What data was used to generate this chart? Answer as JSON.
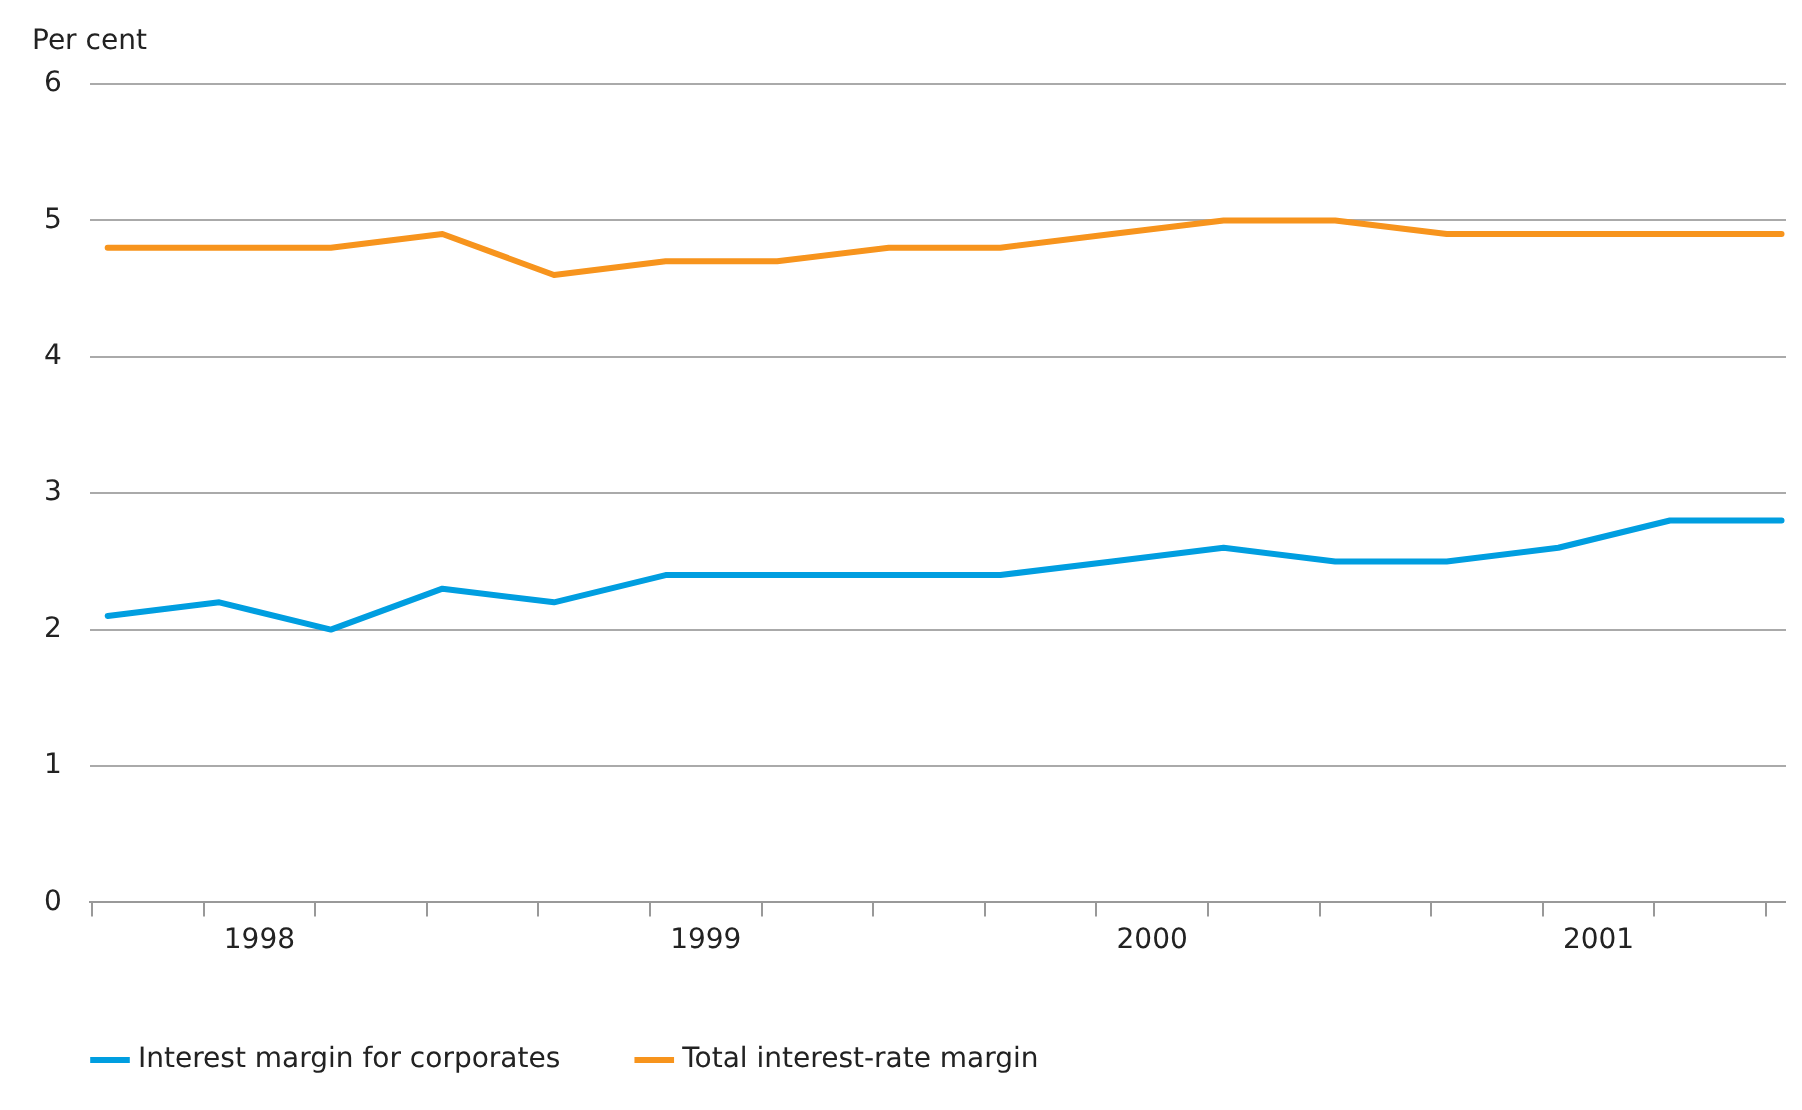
{
  "chart_data": {
    "type": "line",
    "ylabel": "Per cent",
    "x": [
      1998.16,
      1998.41,
      1998.66,
      1998.91,
      1999.16,
      1999.41,
      1999.66,
      1999.91,
      2000.16,
      2000.41,
      2000.66,
      2000.91,
      2001.16,
      2001.41,
      2001.66,
      2001.91
    ],
    "series": [
      {
        "name": "Interest margin for corporates",
        "color": "#009ee0",
        "values": [
          2.1,
          2.2,
          2.0,
          2.3,
          2.2,
          2.4,
          2.4,
          2.4,
          2.4,
          2.5,
          2.6,
          2.5,
          2.5,
          2.6,
          2.8,
          2.8
        ]
      },
      {
        "name": "Total interest-rate margin",
        "color": "#f7941d",
        "values": [
          4.8,
          4.8,
          4.8,
          4.9,
          4.6,
          4.7,
          4.7,
          4.8,
          4.8,
          4.9,
          5.0,
          5.0,
          4.9,
          4.9,
          4.9,
          4.9
        ]
      }
    ],
    "xlim": [
      1998.12,
      2001.92
    ],
    "xticks": [
      {
        "value": 1998.125,
        "label": null
      },
      {
        "value": 1998.375,
        "label": null
      },
      {
        "value": 1998.5,
        "label": "1998"
      },
      {
        "value": 1998.625,
        "label": null
      },
      {
        "value": 1998.875,
        "label": null
      },
      {
        "value": 1999.125,
        "label": null
      },
      {
        "value": 1999.375,
        "label": null
      },
      {
        "value": 1999.5,
        "label": "1999"
      },
      {
        "value": 1999.625,
        "label": null
      },
      {
        "value": 1999.875,
        "label": null
      },
      {
        "value": 2000.125,
        "label": null
      },
      {
        "value": 2000.375,
        "label": null
      },
      {
        "value": 2000.5,
        "label": "2000"
      },
      {
        "value": 2000.625,
        "label": null
      },
      {
        "value": 2000.875,
        "label": null
      },
      {
        "value": 2001.125,
        "label": null
      },
      {
        "value": 2001.375,
        "label": null
      },
      {
        "value": 2001.5,
        "label": "2001"
      },
      {
        "value": 2001.625,
        "label": null
      },
      {
        "value": 2001.875,
        "label": null
      }
    ],
    "ylim": [
      0,
      6
    ],
    "yticks": [
      0,
      1,
      2,
      3,
      4,
      5,
      6
    ],
    "grid": "y",
    "legend": "bottom left",
    "marker": "none",
    "line_style": "solid"
  }
}
